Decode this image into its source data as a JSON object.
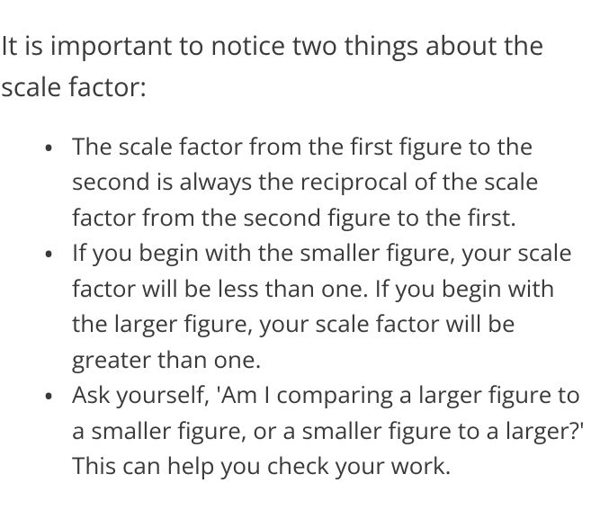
{
  "document": {
    "intro": "It is important to notice two things about the scale factor:",
    "bullets": [
      "The scale factor from the first figure to the second is always the reciprocal of the scale factor from the second figure to the first.",
      "If you begin with the smaller figure, your scale factor will be less than one. If you begin with the larger figure, your scale factor will be greater than one.",
      "Ask yourself, 'Am I comparing a larger figure to a smaller figure, or a smaller figure to a larger?' This can help you check your work."
    ],
    "text_color": "#3a3a3a",
    "background_color": "#ffffff",
    "intro_fontsize": 29,
    "bullet_fontsize": 26
  }
}
